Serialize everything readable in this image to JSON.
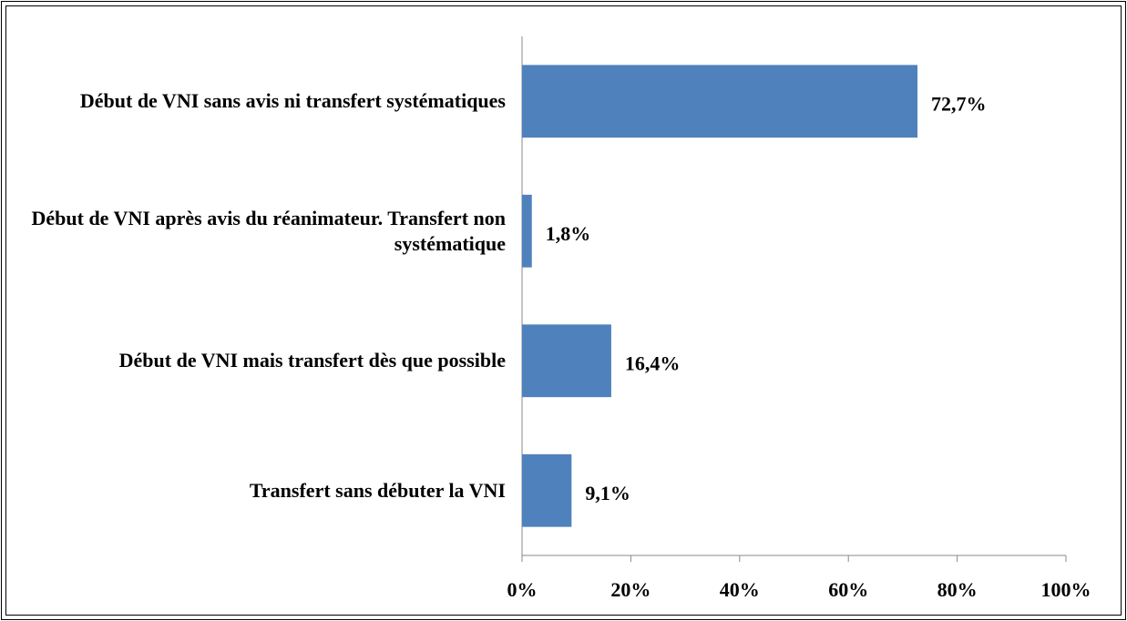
{
  "chart_data": {
    "type": "bar",
    "orientation": "horizontal",
    "categories": [
      "Début de VNI sans avis ni transfert systématiques",
      "Début de VNI après avis du réanimateur. Transfert non systématique",
      "Début de VNI mais transfert dès que possible",
      "Transfert sans débuter la VNI"
    ],
    "values": [
      72.7,
      1.8,
      16.4,
      9.1
    ],
    "value_labels": [
      "72,7%",
      "1,8%",
      "16,4%",
      "9,1%"
    ],
    "color": "#4f81bd",
    "xlim": [
      0,
      100
    ],
    "xticks": [
      {
        "value": 0,
        "label": "0%"
      },
      {
        "value": 20,
        "label": "20%"
      },
      {
        "value": 40,
        "label": "40%"
      },
      {
        "value": 60,
        "label": "60%"
      },
      {
        "value": 80,
        "label": "80%"
      },
      {
        "value": 100,
        "label": "100%"
      }
    ],
    "grid": false
  }
}
